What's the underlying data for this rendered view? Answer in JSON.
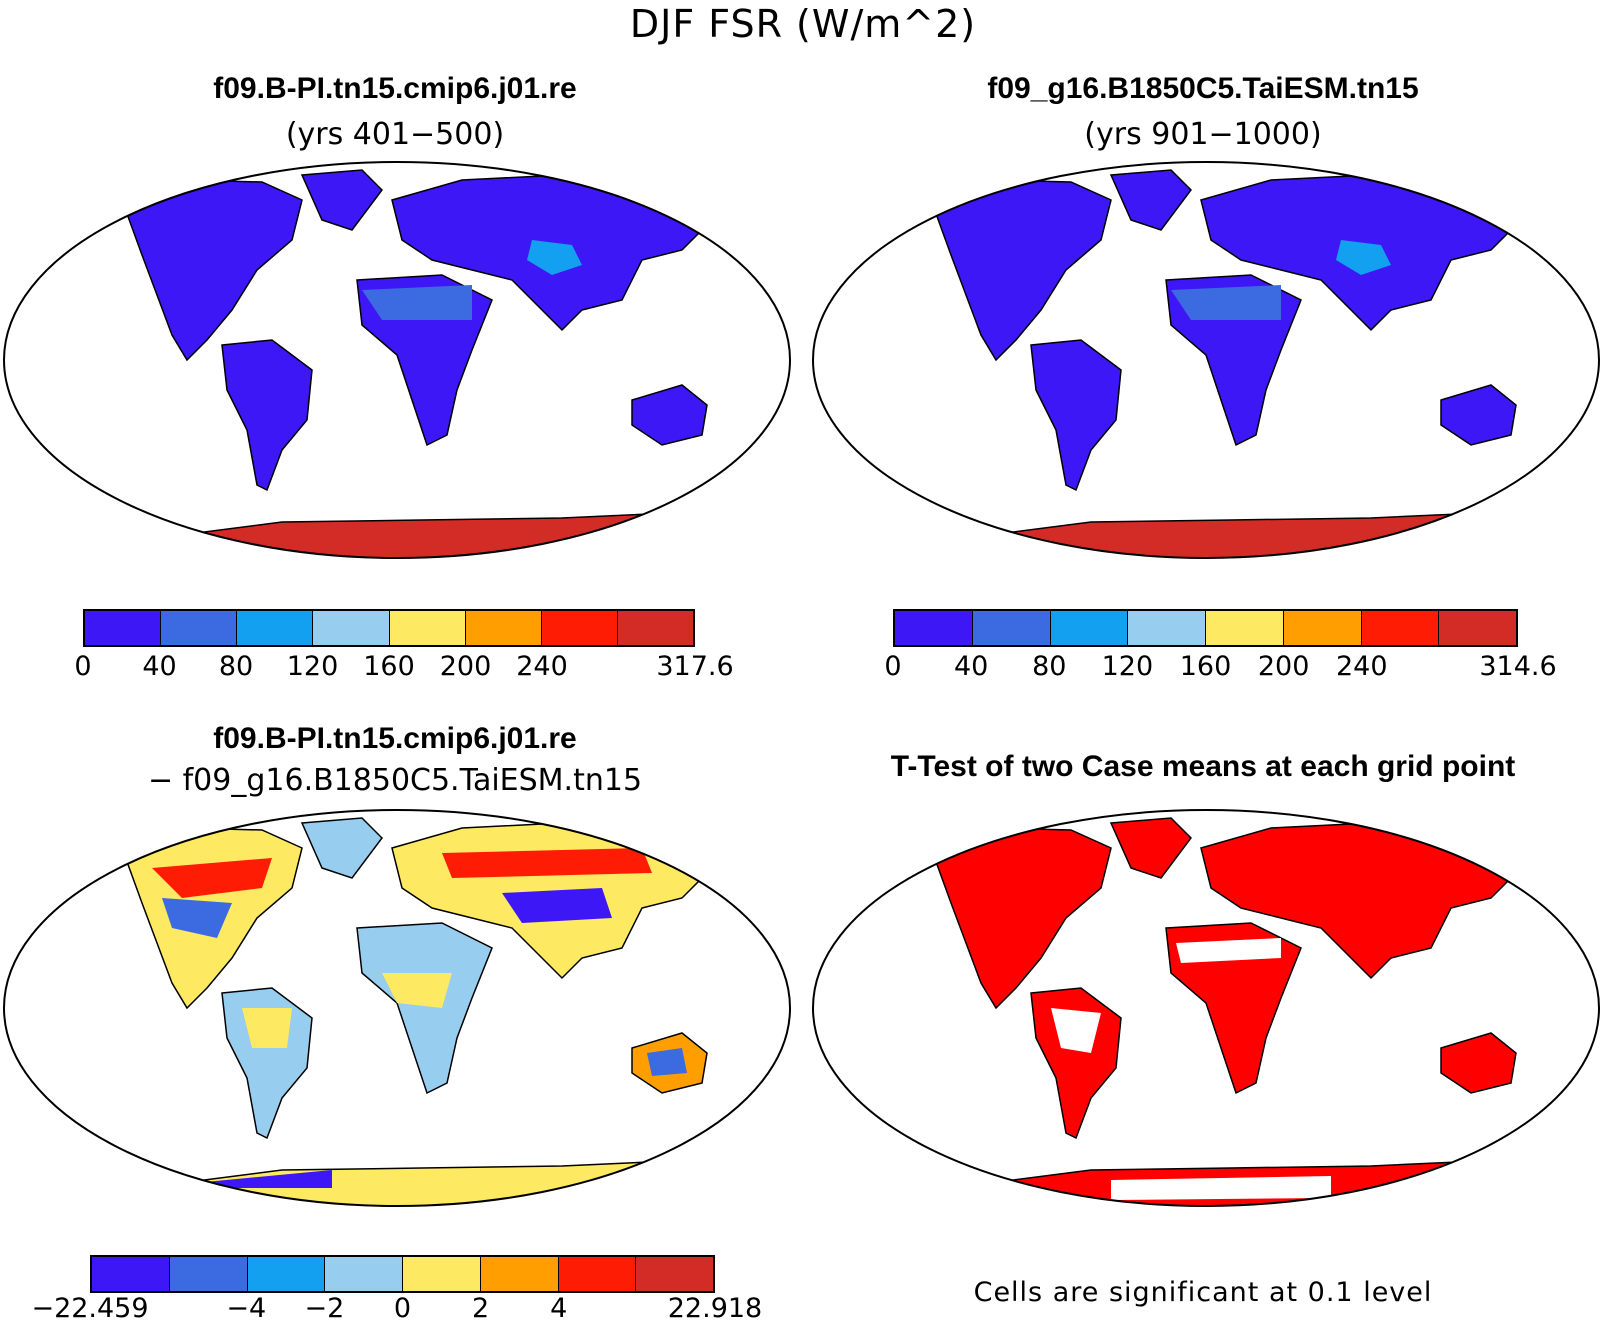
{
  "title": "DJF FSR (W/m^2)",
  "panels": {
    "top_left": {
      "title": "f09.B-PI.tn15.cmip6.j01.re",
      "subtitle": "(yrs 401−500)",
      "colorbar": {
        "colors": [
          "#3d17f5",
          "#3c6ae0",
          "#13a0f0",
          "#97cdef",
          "#fde962",
          "#ff9e00",
          "#fe1c05",
          "#d32b26"
        ],
        "ticks": [
          "0",
          "40",
          "80",
          "120",
          "160",
          "200",
          "240",
          "317.6"
        ]
      }
    },
    "top_right": {
      "title": "f09_g16.B1850C5.TaiESM.tn15",
      "subtitle": "(yrs 901−1000)",
      "colorbar": {
        "colors": [
          "#3d17f5",
          "#3c6ae0",
          "#13a0f0",
          "#97cdef",
          "#fde962",
          "#ff9e00",
          "#fe1c05",
          "#d32b26"
        ],
        "ticks": [
          "0",
          "40",
          "80",
          "120",
          "160",
          "200",
          "240",
          "314.6"
        ]
      }
    },
    "bottom_left": {
      "title": "f09.B-PI.tn15.cmip6.j01.re",
      "subtitle": "− f09_g16.B1850C5.TaiESM.tn15",
      "colorbar": {
        "colors": [
          "#3d17f5",
          "#3c6ae0",
          "#13a0f0",
          "#97cdef",
          "#fde962",
          "#ff9e00",
          "#fe1c05",
          "#d32b26"
        ],
        "ticks": [
          "−22.459",
          "",
          "−4",
          "−2",
          "0",
          "2",
          "4",
          "22.918"
        ]
      }
    },
    "bottom_right": {
      "title": "T-Test of two Case means at each grid point",
      "note": "Cells are significant at 0.1 level",
      "significance_color": "#ff0000"
    }
  },
  "colors": {
    "land_low": "#3d17f5",
    "land_mid": "#3c6ae0",
    "antarctica": "#d32b26",
    "significant": "#ff0000"
  }
}
